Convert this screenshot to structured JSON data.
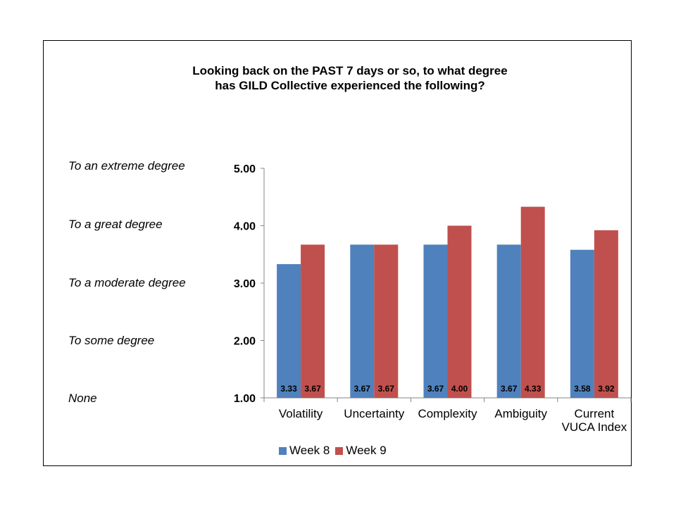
{
  "chart_data": {
    "type": "bar",
    "title": "Looking back on the PAST 7 days or so, to what degree has GILD Collective experienced the following?",
    "categories": [
      "Volatility",
      "Uncertainty",
      "Complexity",
      "Ambiguity",
      "Current VUCA Index"
    ],
    "series": [
      {
        "name": "Week 8",
        "color": "#4F81BD",
        "values": [
          3.33,
          3.67,
          3.67,
          3.67,
          3.58
        ],
        "labels": [
          "3.33",
          "3.67",
          "3.67",
          "3.67",
          "3.58"
        ]
      },
      {
        "name": "Week 9",
        "color": "#C0504D",
        "values": [
          3.67,
          3.67,
          4.0,
          4.33,
          3.92
        ],
        "labels": [
          "3.67",
          "3.67",
          "4.00",
          "4.33",
          "3.92"
        ]
      }
    ],
    "ylim": [
      1.0,
      5.0
    ],
    "yticks": [
      "1.00",
      "2.00",
      "3.00",
      "4.00",
      "5.00"
    ],
    "scale_labels": [
      "None",
      "To some degree",
      "To a moderate degree",
      "To a great degree",
      "To an extreme degree"
    ],
    "grid": false,
    "legend": "bottom"
  }
}
